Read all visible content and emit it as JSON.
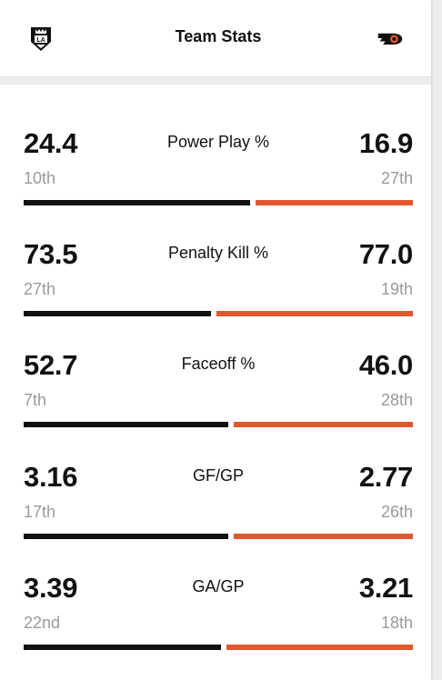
{
  "header": {
    "title": "Team Stats",
    "home_team_icon": "la-kings-logo-icon",
    "away_team_icon": "philadelphia-flyers-logo-icon"
  },
  "colors": {
    "left_bar": "#111111",
    "right_bar": "#e4572e",
    "rank_text": "#9a9a9a"
  },
  "stats": [
    {
      "label": "Power Play %",
      "left_value": "24.4",
      "left_rank": "10th",
      "right_value": "16.9",
      "right_rank": "27th",
      "left_num": 24.4,
      "right_num": 16.9
    },
    {
      "label": "Penalty Kill %",
      "left_value": "73.5",
      "left_rank": "27th",
      "right_value": "77.0",
      "right_rank": "19th",
      "left_num": 73.5,
      "right_num": 77.0
    },
    {
      "label": "Faceoff %",
      "left_value": "52.7",
      "left_rank": "7th",
      "right_value": "46.0",
      "right_rank": "28th",
      "left_num": 52.7,
      "right_num": 46.0
    },
    {
      "label": "GF/GP",
      "left_value": "3.16",
      "left_rank": "17th",
      "right_value": "2.77",
      "right_rank": "26th",
      "left_num": 3.16,
      "right_num": 2.77
    },
    {
      "label": "GA/GP",
      "left_value": "3.39",
      "left_rank": "22nd",
      "right_value": "3.21",
      "right_rank": "18th",
      "left_num": 3.39,
      "right_num": 3.21
    }
  ]
}
